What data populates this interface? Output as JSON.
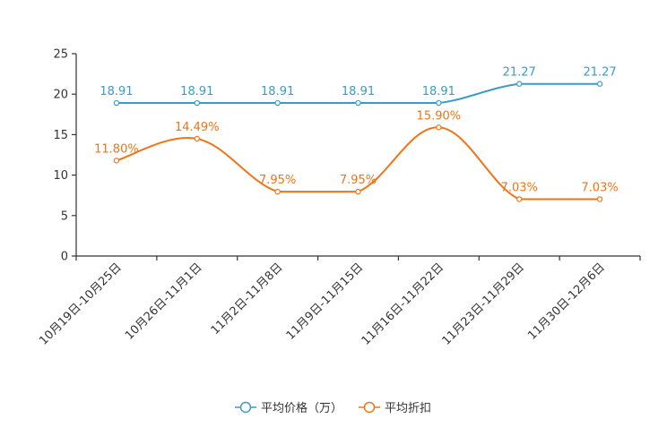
{
  "chart_data": {
    "type": "line",
    "title": "",
    "xlabel": "",
    "ylabel": "",
    "ylim": [
      0,
      25
    ],
    "yticks": [
      "0",
      "5",
      "10",
      "15",
      "20",
      "25"
    ],
    "categories": [
      "10月19日-10月25日",
      "10月26日-11月1日",
      "11月2日-11月8日",
      "11月9日-11月15日",
      "11月16日-11月22日",
      "11月23日-11月29日",
      "11月30日-12月6日"
    ],
    "series": [
      {
        "name": "平均价格（万）",
        "color": "#3d9ac7",
        "values": [
          18.91,
          18.91,
          18.91,
          18.91,
          18.91,
          21.27,
          21.27
        ],
        "labels": [
          "18.91",
          "18.91",
          "18.91",
          "18.91",
          "18.91",
          "21.27",
          "21.27"
        ]
      },
      {
        "name": "平均折扣",
        "color": "#f07418",
        "values": [
          11.8,
          14.49,
          7.95,
          7.95,
          15.9,
          7.03,
          7.03
        ],
        "labels": [
          "11.80%",
          "14.49%",
          "7.95%",
          "7.95%",
          "15.90%",
          "7.03%",
          "7.03%"
        ]
      }
    ],
    "legend": {
      "position": "bottom"
    },
    "grid": false
  }
}
